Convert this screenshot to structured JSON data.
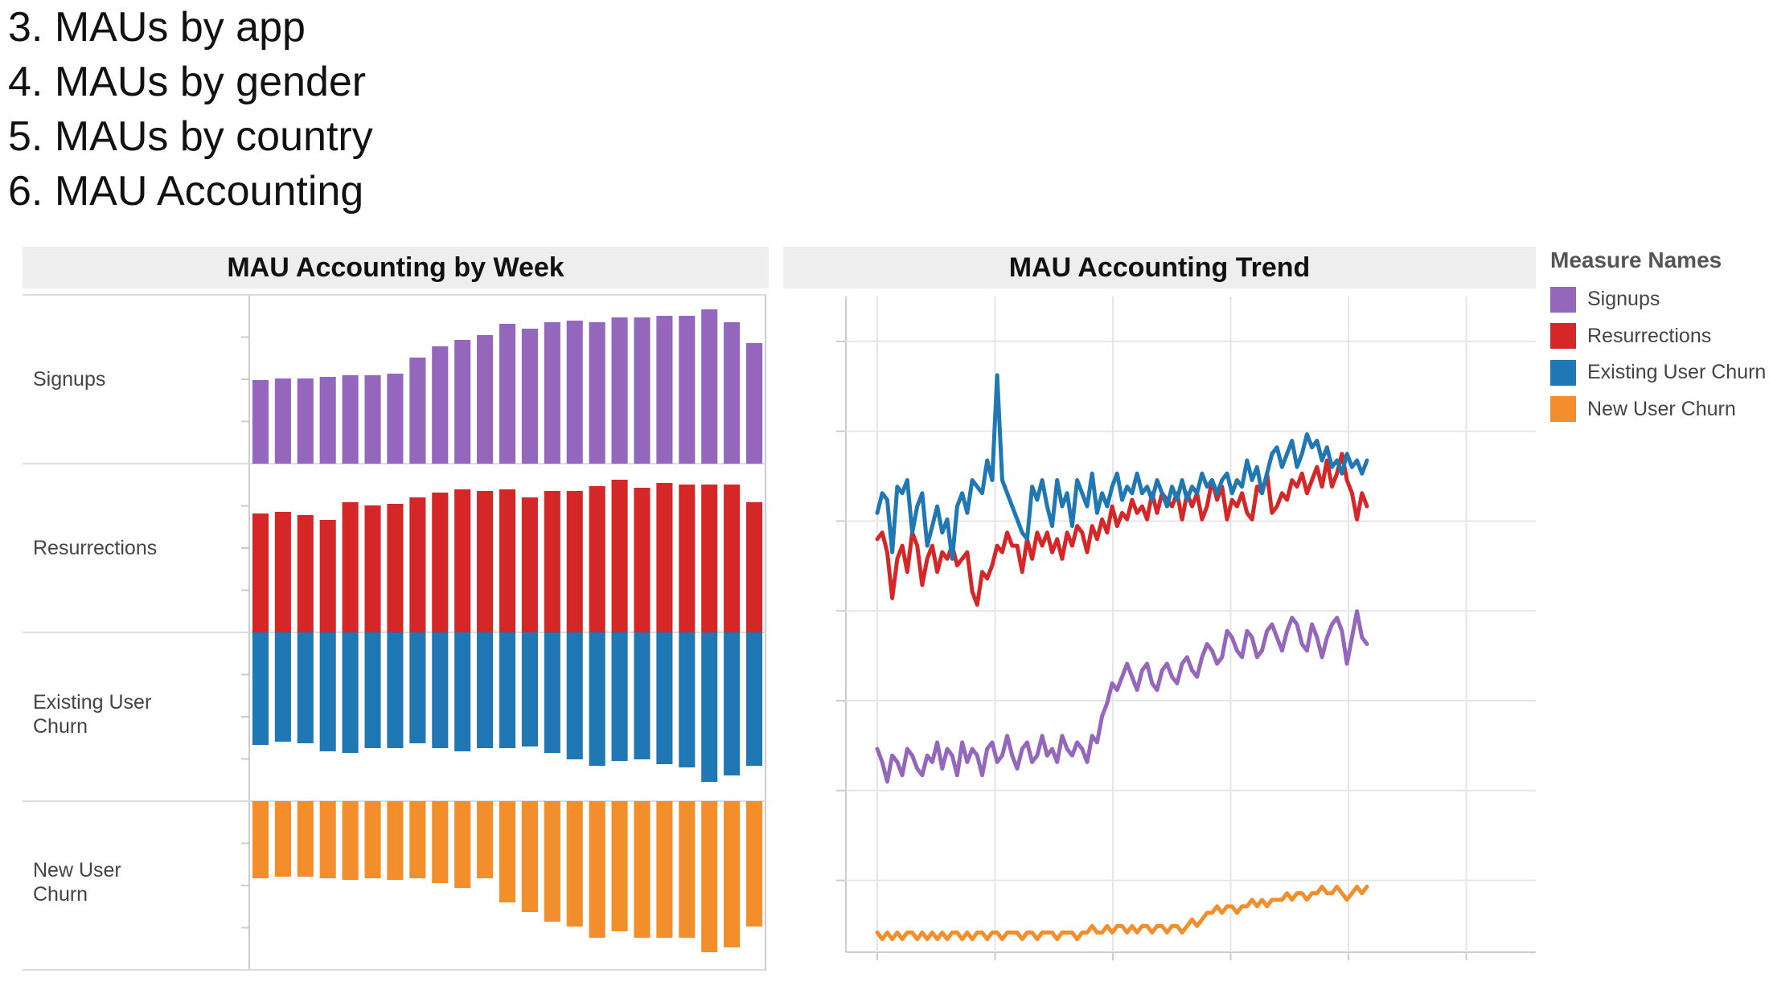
{
  "outline": [
    {
      "label": "3. MAUs by app"
    },
    {
      "label": "4. MAUs by gender"
    },
    {
      "label": "5. MAUs by country"
    },
    {
      "label": "6. MAU Accounting"
    }
  ],
  "chart_data": [
    {
      "type": "bar",
      "title": "MAU Accounting by Week",
      "rows": [
        {
          "name": "Signups",
          "color": "#9467BD",
          "values": [
            0.52,
            0.53,
            0.53,
            0.54,
            0.55,
            0.55,
            0.56,
            0.66,
            0.73,
            0.77,
            0.8,
            0.87,
            0.84,
            0.88,
            0.89,
            0.88,
            0.91,
            0.91,
            0.92,
            0.92,
            0.96,
            0.88,
            0.75
          ]
        },
        {
          "name": "Resurrections",
          "color": "#D62728",
          "values": [
            0.74,
            0.75,
            0.73,
            0.7,
            0.81,
            0.79,
            0.8,
            0.84,
            0.87,
            0.89,
            0.88,
            0.89,
            0.84,
            0.88,
            0.88,
            0.91,
            0.95,
            0.9,
            0.93,
            0.92,
            0.92,
            0.92,
            0.81
          ]
        },
        {
          "name": "Existing User Churn",
          "color": "#1F77B4",
          "values": [
            0.7,
            0.68,
            0.69,
            0.74,
            0.75,
            0.72,
            0.72,
            0.69,
            0.72,
            0.74,
            0.72,
            0.72,
            0.71,
            0.75,
            0.79,
            0.83,
            0.8,
            0.79,
            0.82,
            0.84,
            0.93,
            0.89,
            0.83
          ]
        },
        {
          "name": "New User Churn",
          "color": "#F28E2B",
          "values": [
            0.48,
            0.47,
            0.47,
            0.48,
            0.49,
            0.48,
            0.49,
            0.48,
            0.51,
            0.54,
            0.48,
            0.63,
            0.69,
            0.75,
            0.78,
            0.85,
            0.81,
            0.85,
            0.85,
            0.85,
            0.94,
            0.91,
            0.78
          ]
        }
      ]
    },
    {
      "type": "line",
      "title": "MAU Accounting Trend",
      "legend": {
        "title": "Measure Names",
        "position": "right"
      },
      "grid": true,
      "series": [
        {
          "name": "Signups",
          "color": "#9467BD",
          "values": [
            0.31,
            0.29,
            0.26,
            0.3,
            0.29,
            0.27,
            0.31,
            0.3,
            0.28,
            0.27,
            0.3,
            0.29,
            0.32,
            0.28,
            0.31,
            0.3,
            0.27,
            0.32,
            0.29,
            0.31,
            0.3,
            0.27,
            0.31,
            0.32,
            0.29,
            0.3,
            0.33,
            0.3,
            0.28,
            0.31,
            0.32,
            0.29,
            0.3,
            0.33,
            0.3,
            0.31,
            0.29,
            0.33,
            0.31,
            0.3,
            0.32,
            0.31,
            0.29,
            0.33,
            0.32,
            0.36,
            0.38,
            0.41,
            0.4,
            0.42,
            0.44,
            0.42,
            0.4,
            0.43,
            0.44,
            0.41,
            0.4,
            0.43,
            0.44,
            0.42,
            0.41,
            0.44,
            0.45,
            0.43,
            0.42,
            0.45,
            0.47,
            0.46,
            0.44,
            0.45,
            0.49,
            0.48,
            0.46,
            0.45,
            0.49,
            0.48,
            0.45,
            0.46,
            0.49,
            0.5,
            0.48,
            0.46,
            0.49,
            0.51,
            0.5,
            0.47,
            0.46,
            0.5,
            0.48,
            0.45,
            0.48,
            0.5,
            0.51,
            0.49,
            0.44,
            0.48,
            0.52,
            0.48,
            0.47
          ]
        },
        {
          "name": "Resurrections",
          "color": "#D62728",
          "values": [
            0.63,
            0.64,
            0.61,
            0.54,
            0.6,
            0.62,
            0.58,
            0.64,
            0.62,
            0.56,
            0.6,
            0.62,
            0.58,
            0.61,
            0.6,
            0.62,
            0.59,
            0.6,
            0.61,
            0.55,
            0.53,
            0.58,
            0.57,
            0.59,
            0.62,
            0.61,
            0.64,
            0.62,
            0.62,
            0.58,
            0.63,
            0.6,
            0.64,
            0.62,
            0.64,
            0.61,
            0.63,
            0.6,
            0.64,
            0.62,
            0.65,
            0.64,
            0.61,
            0.65,
            0.63,
            0.66,
            0.64,
            0.68,
            0.65,
            0.67,
            0.66,
            0.69,
            0.67,
            0.68,
            0.66,
            0.7,
            0.67,
            0.7,
            0.69,
            0.68,
            0.7,
            0.66,
            0.7,
            0.68,
            0.7,
            0.66,
            0.68,
            0.72,
            0.69,
            0.71,
            0.66,
            0.69,
            0.68,
            0.7,
            0.67,
            0.66,
            0.71,
            0.7,
            0.73,
            0.67,
            0.68,
            0.7,
            0.69,
            0.72,
            0.71,
            0.73,
            0.7,
            0.72,
            0.74,
            0.71,
            0.75,
            0.71,
            0.73,
            0.76,
            0.72,
            0.7,
            0.66,
            0.7,
            0.68
          ]
        },
        {
          "name": "Existing User Churn",
          "color": "#1F77B4",
          "values": [
            0.67,
            0.7,
            0.69,
            0.61,
            0.71,
            0.7,
            0.72,
            0.64,
            0.68,
            0.7,
            0.62,
            0.65,
            0.68,
            0.64,
            0.66,
            0.6,
            0.68,
            0.7,
            0.67,
            0.72,
            0.71,
            0.7,
            0.75,
            0.72,
            0.88,
            0.72,
            0.7,
            0.68,
            0.66,
            0.64,
            0.63,
            0.71,
            0.69,
            0.72,
            0.68,
            0.65,
            0.72,
            0.68,
            0.7,
            0.65,
            0.72,
            0.7,
            0.68,
            0.73,
            0.67,
            0.7,
            0.68,
            0.71,
            0.73,
            0.69,
            0.71,
            0.7,
            0.73,
            0.7,
            0.71,
            0.69,
            0.72,
            0.7,
            0.68,
            0.71,
            0.69,
            0.72,
            0.69,
            0.71,
            0.7,
            0.73,
            0.71,
            0.72,
            0.7,
            0.72,
            0.73,
            0.7,
            0.72,
            0.71,
            0.75,
            0.72,
            0.74,
            0.7,
            0.73,
            0.76,
            0.77,
            0.74,
            0.76,
            0.78,
            0.74,
            0.76,
            0.79,
            0.77,
            0.78,
            0.75,
            0.77,
            0.74,
            0.75,
            0.73,
            0.76,
            0.74,
            0.75,
            0.73,
            0.75
          ]
        },
        {
          "name": "New User Churn",
          "color": "#F28E2B",
          "values": [
            0.03,
            0.02,
            0.03,
            0.02,
            0.03,
            0.02,
            0.03,
            0.03,
            0.02,
            0.03,
            0.02,
            0.03,
            0.02,
            0.03,
            0.02,
            0.03,
            0.03,
            0.02,
            0.03,
            0.02,
            0.03,
            0.03,
            0.02,
            0.03,
            0.03,
            0.02,
            0.03,
            0.03,
            0.03,
            0.02,
            0.03,
            0.03,
            0.02,
            0.03,
            0.03,
            0.03,
            0.02,
            0.03,
            0.03,
            0.03,
            0.02,
            0.03,
            0.03,
            0.04,
            0.03,
            0.03,
            0.04,
            0.03,
            0.04,
            0.04,
            0.03,
            0.04,
            0.03,
            0.04,
            0.04,
            0.03,
            0.04,
            0.04,
            0.03,
            0.04,
            0.04,
            0.03,
            0.04,
            0.05,
            0.04,
            0.05,
            0.06,
            0.06,
            0.07,
            0.06,
            0.07,
            0.07,
            0.06,
            0.07,
            0.07,
            0.08,
            0.07,
            0.08,
            0.07,
            0.08,
            0.08,
            0.08,
            0.09,
            0.08,
            0.09,
            0.09,
            0.08,
            0.09,
            0.09,
            0.1,
            0.09,
            0.09,
            0.1,
            0.09,
            0.08,
            0.09,
            0.1,
            0.09,
            0.1
          ]
        }
      ]
    }
  ]
}
